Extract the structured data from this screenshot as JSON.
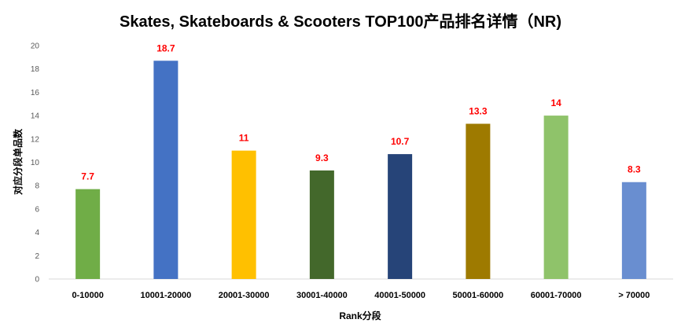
{
  "chart_data": {
    "type": "bar",
    "title": "Skates, Skateboards & Scooters TOP100产品排名详情（NR)",
    "xlabel": "Rank分段",
    "ylabel": "对应分段单品数",
    "categories": [
      "0-10000",
      "10001-20000",
      "20001-30000",
      "30001-40000",
      "40001-50000",
      "50001-60000",
      "60001-70000",
      "> 70000"
    ],
    "values": [
      7.7,
      18.7,
      11,
      9.3,
      10.7,
      13.3,
      14,
      8.3
    ],
    "value_labels": [
      "7.7",
      "18.7",
      "11",
      "9.3",
      "10.7",
      "13.3",
      "14",
      "8.3"
    ],
    "colors": [
      "#70ad47",
      "#4472c4",
      "#ffc000",
      "#43682b",
      "#264478",
      "#9e7a00",
      "#8fc36a",
      "#698ed0"
    ],
    "ylim": [
      0,
      20
    ],
    "yticks": [
      0,
      2,
      4,
      6,
      8,
      10,
      12,
      14,
      16,
      18,
      20
    ],
    "grid": false,
    "legend": "none",
    "label_color": "#ff0000"
  }
}
